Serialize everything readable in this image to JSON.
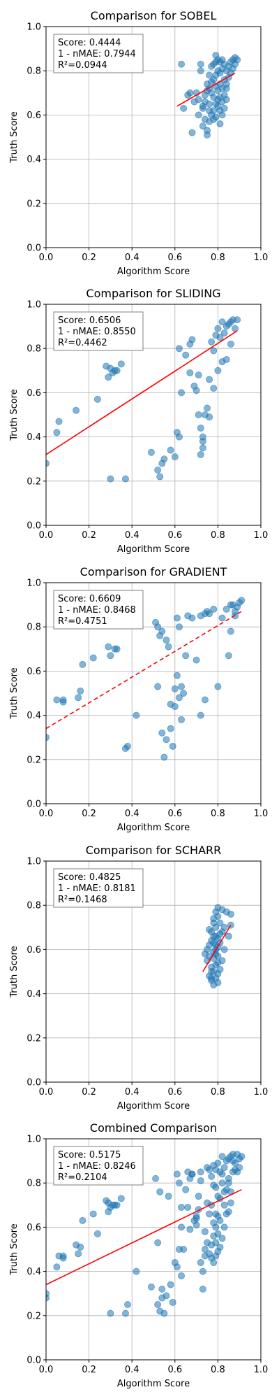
{
  "chart_data": [
    {
      "type": "scatter",
      "title": "Comparison for SOBEL",
      "xlabel": "Algorithm Score",
      "ylabel": "Truth Score",
      "xlim": [
        0,
        1
      ],
      "ylim": [
        0,
        1
      ],
      "xticks": [
        "0.0",
        "0.2",
        "0.4",
        "0.6",
        "0.8",
        "1.0"
      ],
      "yticks": [
        "0.0",
        "0.2",
        "0.4",
        "0.6",
        "0.8",
        "1.0"
      ],
      "grid": true,
      "stats": [
        "Score: 0.4444",
        "1 - nMAE: 0.7944",
        "R²=0.0944"
      ],
      "stats_placement": "top-left",
      "point_color": "#1f77b4",
      "line_color": "#ff0000",
      "fit_line": {
        "style": "solid",
        "x": [
          0.61,
          0.88
        ],
        "y": [
          0.64,
          0.79
        ]
      },
      "points": {
        "x": [
          0.63,
          0.64,
          0.66,
          0.68,
          0.7,
          0.71,
          0.72,
          0.72,
          0.73,
          0.73,
          0.74,
          0.74,
          0.75,
          0.75,
          0.75,
          0.76,
          0.76,
          0.76,
          0.77,
          0.77,
          0.77,
          0.78,
          0.78,
          0.78,
          0.78,
          0.79,
          0.79,
          0.79,
          0.79,
          0.8,
          0.8,
          0.8,
          0.8,
          0.81,
          0.81,
          0.81,
          0.81,
          0.82,
          0.82,
          0.82,
          0.82,
          0.83,
          0.83,
          0.83,
          0.84,
          0.84,
          0.84,
          0.85,
          0.85,
          0.86,
          0.86,
          0.87,
          0.87,
          0.88,
          0.88,
          0.89,
          0.79,
          0.81,
          0.83,
          0.77,
          0.74,
          0.76,
          0.8,
          0.82,
          0.84,
          0.78,
          0.75,
          0.73,
          0.71,
          0.69,
          0.67,
          0.76,
          0.79,
          0.81
        ],
        "y": [
          0.83,
          0.63,
          0.69,
          0.52,
          0.7,
          0.67,
          0.83,
          0.8,
          0.63,
          0.55,
          0.58,
          0.66,
          0.53,
          0.51,
          0.74,
          0.78,
          0.62,
          0.57,
          0.82,
          0.7,
          0.6,
          0.83,
          0.76,
          0.68,
          0.58,
          0.84,
          0.78,
          0.73,
          0.65,
          0.85,
          0.8,
          0.71,
          0.64,
          0.84,
          0.79,
          0.74,
          0.62,
          0.85,
          0.81,
          0.72,
          0.66,
          0.83,
          0.76,
          0.69,
          0.8,
          0.74,
          0.67,
          0.82,
          0.77,
          0.84,
          0.79,
          0.85,
          0.81,
          0.86,
          0.83,
          0.85,
          0.87,
          0.68,
          0.63,
          0.75,
          0.69,
          0.65,
          0.67,
          0.6,
          0.72,
          0.62,
          0.71,
          0.64,
          0.6,
          0.66,
          0.7,
          0.72,
          0.59,
          0.56
        ]
      }
    },
    {
      "type": "scatter",
      "title": "Comparison for SLIDING",
      "xlabel": "Algorithm Score",
      "ylabel": "Truth Score",
      "xlim": [
        0,
        1
      ],
      "ylim": [
        0,
        1
      ],
      "xticks": [
        "0.0",
        "0.2",
        "0.4",
        "0.6",
        "0.8",
        "1.0"
      ],
      "yticks": [
        "0.0",
        "0.2",
        "0.4",
        "0.6",
        "0.8",
        "1.0"
      ],
      "grid": true,
      "stats": [
        "Score: 0.6506",
        "1 - nMAE: 0.8550",
        "R²=0.4462"
      ],
      "stats_placement": "top-left",
      "point_color": "#1f77b4",
      "line_color": "#ff0000",
      "fit_line": {
        "style": "solid",
        "x": [
          0.0,
          0.89
        ],
        "y": [
          0.32,
          0.88
        ]
      },
      "points": {
        "x": [
          0.0,
          0.05,
          0.06,
          0.14,
          0.24,
          0.28,
          0.29,
          0.3,
          0.31,
          0.32,
          0.33,
          0.35,
          0.3,
          0.37,
          0.49,
          0.52,
          0.53,
          0.54,
          0.55,
          0.58,
          0.61,
          0.62,
          0.63,
          0.65,
          0.67,
          0.68,
          0.69,
          0.7,
          0.71,
          0.72,
          0.72,
          0.73,
          0.74,
          0.75,
          0.76,
          0.77,
          0.78,
          0.79,
          0.8,
          0.81,
          0.82,
          0.83,
          0.84,
          0.85,
          0.86,
          0.87,
          0.88,
          0.89,
          0.67,
          0.73,
          0.78,
          0.8,
          0.82,
          0.84,
          0.86,
          0.6,
          0.62,
          0.71,
          0.73,
          0.76
        ],
        "y": [
          0.28,
          0.42,
          0.47,
          0.52,
          0.57,
          0.72,
          0.67,
          0.71,
          0.69,
          0.7,
          0.7,
          0.73,
          0.21,
          0.21,
          0.33,
          0.25,
          0.22,
          0.28,
          0.3,
          0.34,
          0.42,
          0.8,
          0.6,
          0.77,
          0.82,
          0.84,
          0.63,
          0.61,
          0.68,
          0.44,
          0.32,
          0.4,
          0.5,
          0.53,
          0.66,
          0.83,
          0.79,
          0.86,
          0.89,
          0.85,
          0.92,
          0.87,
          0.9,
          0.91,
          0.92,
          0.93,
          0.89,
          0.93,
          0.69,
          0.38,
          0.62,
          0.7,
          0.74,
          0.75,
          0.82,
          0.31,
          0.4,
          0.5,
          0.35,
          0.49
        ]
      }
    },
    {
      "type": "scatter",
      "title": "Comparison for GRADIENT",
      "xlabel": "Algorithm Score",
      "ylabel": "Truth Score",
      "xlim": [
        0,
        1
      ],
      "ylim": [
        0,
        1
      ],
      "xticks": [
        "0.0",
        "0.2",
        "0.4",
        "0.6",
        "0.8",
        "1.0"
      ],
      "yticks": [
        "0.0",
        "0.2",
        "0.4",
        "0.6",
        "0.8",
        "1.0"
      ],
      "grid": true,
      "stats": [
        "Score: 0.6609",
        "1 - nMAE: 0.8468",
        "R²=0.4751"
      ],
      "stats_placement": "top-left",
      "point_color": "#1f77b4",
      "line_color": "#ff0000",
      "fit_line": {
        "style": "dashed",
        "x": [
          0.0,
          0.91
        ],
        "y": [
          0.34,
          0.87
        ]
      },
      "points": {
        "x": [
          0.0,
          0.05,
          0.08,
          0.08,
          0.15,
          0.16,
          0.17,
          0.22,
          0.29,
          0.3,
          0.32,
          0.33,
          0.37,
          0.38,
          0.42,
          0.51,
          0.52,
          0.53,
          0.54,
          0.55,
          0.56,
          0.57,
          0.58,
          0.59,
          0.6,
          0.61,
          0.62,
          0.63,
          0.64,
          0.65,
          0.66,
          0.68,
          0.7,
          0.72,
          0.74,
          0.75,
          0.76,
          0.78,
          0.8,
          0.82,
          0.84,
          0.86,
          0.88,
          0.89,
          0.9,
          0.91,
          0.52,
          0.61,
          0.63,
          0.58,
          0.56,
          0.72,
          0.86,
          0.85,
          0.87,
          0.88,
          0.54,
          0.62,
          0.6,
          0.74
        ],
        "y": [
          0.3,
          0.47,
          0.46,
          0.47,
          0.48,
          0.51,
          0.63,
          0.66,
          0.71,
          0.67,
          0.7,
          0.7,
          0.25,
          0.26,
          0.4,
          0.82,
          0.53,
          0.76,
          0.32,
          0.21,
          0.74,
          0.71,
          0.34,
          0.26,
          0.44,
          0.84,
          0.8,
          0.38,
          0.5,
          0.67,
          0.85,
          0.84,
          0.65,
          0.85,
          0.47,
          0.87,
          0.86,
          0.88,
          0.53,
          0.84,
          0.88,
          0.9,
          0.87,
          0.89,
          0.91,
          0.92,
          0.8,
          0.58,
          0.53,
          0.45,
          0.29,
          0.4,
          0.78,
          0.67,
          0.9,
          0.85,
          0.78,
          0.48,
          0.52,
          0.86
        ]
      }
    },
    {
      "type": "scatter",
      "title": "Comparison for SCHARR",
      "xlabel": "Algorithm Score",
      "ylabel": "Truth Score",
      "xlim": [
        0,
        1
      ],
      "ylim": [
        0,
        1
      ],
      "xticks": [
        "0.0",
        "0.2",
        "0.4",
        "0.6",
        "0.8",
        "1.0"
      ],
      "yticks": [
        "0.0",
        "0.2",
        "0.4",
        "0.6",
        "0.8",
        "1.0"
      ],
      "grid": true,
      "stats": [
        "Score: 0.4825",
        "1 - nMAE: 0.8181",
        "R²=0.1468"
      ],
      "stats_placement": "top-left",
      "point_color": "#1f77b4",
      "line_color": "#ff0000",
      "fit_line": {
        "style": "solid",
        "x": [
          0.73,
          0.86
        ],
        "y": [
          0.5,
          0.71
        ]
      },
      "points": {
        "x": [
          0.74,
          0.75,
          0.76,
          0.76,
          0.77,
          0.77,
          0.77,
          0.78,
          0.78,
          0.78,
          0.78,
          0.79,
          0.79,
          0.79,
          0.79,
          0.8,
          0.8,
          0.8,
          0.8,
          0.81,
          0.81,
          0.81,
          0.82,
          0.82,
          0.83,
          0.83,
          0.84,
          0.85,
          0.86,
          0.86,
          0.77,
          0.78,
          0.79,
          0.8,
          0.76,
          0.78,
          0.8,
          0.82,
          0.79,
          0.77,
          0.78,
          0.79,
          0.81,
          0.8,
          0.76,
          0.75,
          0.78,
          0.8,
          0.79,
          0.77
        ],
        "y": [
          0.58,
          0.55,
          0.48,
          0.62,
          0.46,
          0.52,
          0.68,
          0.44,
          0.5,
          0.56,
          0.74,
          0.47,
          0.53,
          0.6,
          0.7,
          0.49,
          0.57,
          0.65,
          0.79,
          0.51,
          0.63,
          0.72,
          0.55,
          0.78,
          0.6,
          0.7,
          0.77,
          0.66,
          0.71,
          0.76,
          0.64,
          0.59,
          0.66,
          0.61,
          0.57,
          0.66,
          0.45,
          0.68,
          0.62,
          0.5,
          0.72,
          0.77,
          0.67,
          0.54,
          0.69,
          0.6,
          0.63,
          0.75,
          0.58,
          0.47
        ]
      }
    },
    {
      "type": "scatter",
      "title": "Combined Comparison",
      "xlabel": "Algorithm Score",
      "ylabel": "Truth Score",
      "xlim": [
        0,
        1
      ],
      "ylim": [
        0,
        1
      ],
      "xticks": [
        "0.0",
        "0.2",
        "0.4",
        "0.6",
        "0.8",
        "1.0"
      ],
      "yticks": [
        "0.0",
        "0.2",
        "0.4",
        "0.6",
        "0.8",
        "1.0"
      ],
      "grid": true,
      "stats": [
        "Score: 0.5175",
        "1 - nMAE: 0.8246",
        "R²=0.2104"
      ],
      "stats_placement": "top-left",
      "point_color": "#1f77b4",
      "line_color": "#ff0000",
      "fit_line": {
        "style": "solid",
        "x": [
          0.0,
          0.91
        ],
        "y": [
          0.34,
          0.77
        ]
      },
      "points": {
        "x": [
          0.0,
          0.0,
          0.05,
          0.06,
          0.08,
          0.08,
          0.14,
          0.15,
          0.16,
          0.17,
          0.22,
          0.24,
          0.28,
          0.29,
          0.29,
          0.3,
          0.3,
          0.31,
          0.32,
          0.33,
          0.35,
          0.37,
          0.38,
          0.42,
          0.49,
          0.51,
          0.52,
          0.52,
          0.53,
          0.53,
          0.54,
          0.54,
          0.55,
          0.56,
          0.57,
          0.58,
          0.59,
          0.6,
          0.61,
          0.61,
          0.62,
          0.62,
          0.63,
          0.63,
          0.64,
          0.65,
          0.66,
          0.67,
          0.68,
          0.68,
          0.69,
          0.7,
          0.7,
          0.71,
          0.71,
          0.72,
          0.72,
          0.73,
          0.73,
          0.74,
          0.74,
          0.75,
          0.75,
          0.76,
          0.76,
          0.76,
          0.77,
          0.77,
          0.77,
          0.78,
          0.78,
          0.78,
          0.78,
          0.79,
          0.79,
          0.79,
          0.79,
          0.8,
          0.8,
          0.8,
          0.8,
          0.81,
          0.81,
          0.81,
          0.82,
          0.82,
          0.82,
          0.83,
          0.83,
          0.83,
          0.84,
          0.84,
          0.84,
          0.85,
          0.85,
          0.85,
          0.86,
          0.86,
          0.86,
          0.87,
          0.87,
          0.88,
          0.88,
          0.89,
          0.89,
          0.9,
          0.9,
          0.91,
          0.66,
          0.7,
          0.74,
          0.78,
          0.8,
          0.82,
          0.77,
          0.79,
          0.81,
          0.83,
          0.85,
          0.87,
          0.72,
          0.75,
          0.79,
          0.63,
          0.67
        ],
        "y": [
          0.28,
          0.3,
          0.42,
          0.47,
          0.46,
          0.47,
          0.52,
          0.48,
          0.51,
          0.63,
          0.66,
          0.57,
          0.72,
          0.67,
          0.71,
          0.21,
          0.69,
          0.7,
          0.7,
          0.7,
          0.73,
          0.21,
          0.25,
          0.4,
          0.33,
          0.82,
          0.25,
          0.53,
          0.22,
          0.76,
          0.28,
          0.32,
          0.21,
          0.29,
          0.74,
          0.34,
          0.26,
          0.44,
          0.42,
          0.84,
          0.8,
          0.5,
          0.6,
          0.38,
          0.5,
          0.77,
          0.85,
          0.82,
          0.84,
          0.84,
          0.63,
          0.61,
          0.65,
          0.68,
          0.74,
          0.44,
          0.85,
          0.4,
          0.32,
          0.5,
          0.47,
          0.53,
          0.87,
          0.66,
          0.86,
          0.48,
          0.83,
          0.46,
          0.52,
          0.79,
          0.88,
          0.44,
          0.56,
          0.86,
          0.47,
          0.53,
          0.6,
          0.89,
          0.49,
          0.57,
          0.65,
          0.85,
          0.51,
          0.63,
          0.92,
          0.55,
          0.84,
          0.87,
          0.6,
          0.7,
          0.9,
          0.77,
          0.66,
          0.91,
          0.82,
          0.67,
          0.92,
          0.71,
          0.76,
          0.93,
          0.85,
          0.89,
          0.86,
          0.93,
          0.85,
          0.91,
          0.87,
          0.92,
          0.69,
          0.64,
          0.58,
          0.62,
          0.74,
          0.8,
          0.7,
          0.78,
          0.73,
          0.76,
          0.8,
          0.9,
          0.81,
          0.71,
          0.66,
          0.69,
          0.59
        ]
      }
    }
  ]
}
